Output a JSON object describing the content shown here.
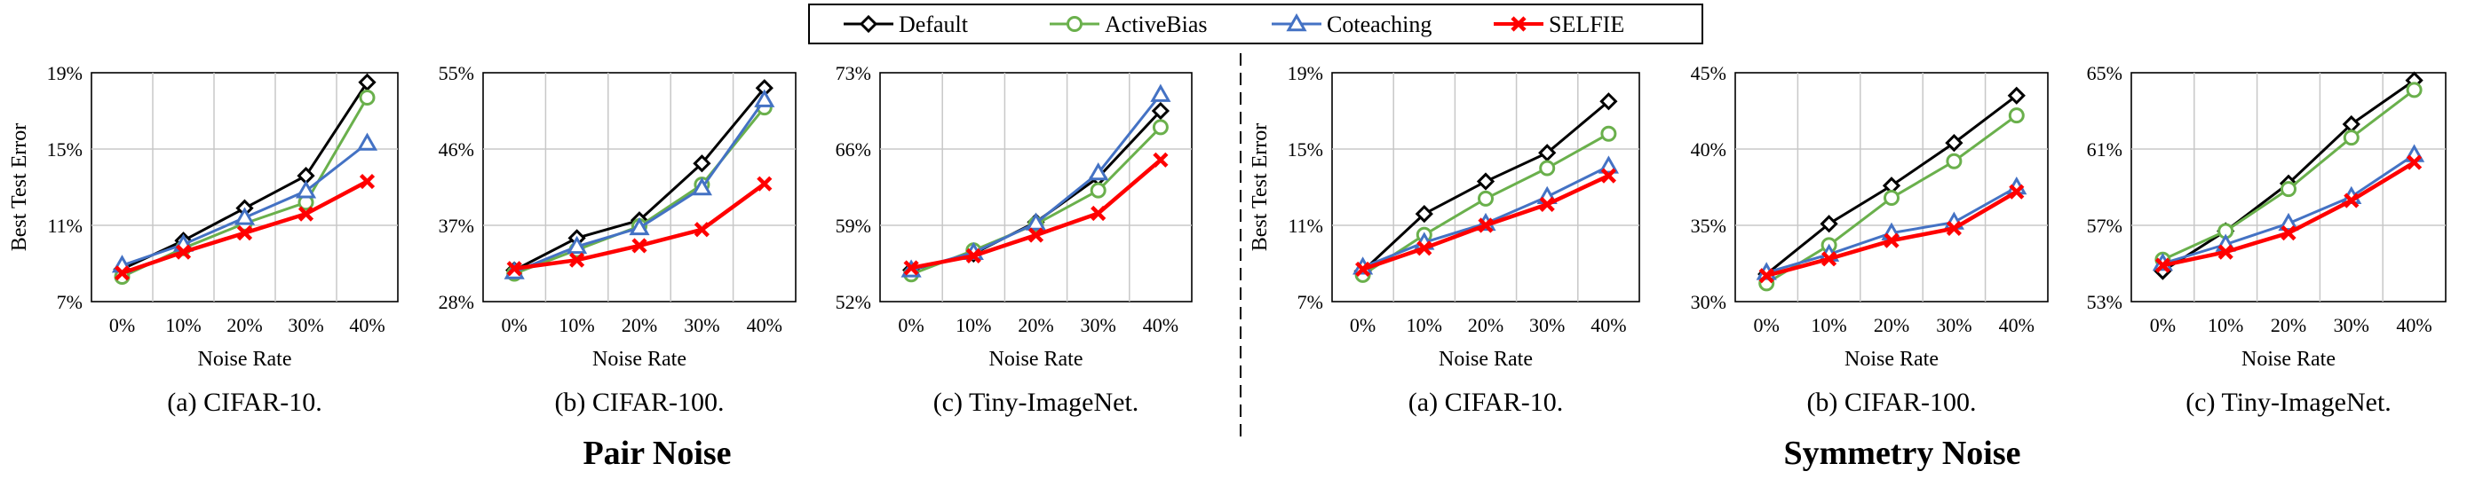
{
  "legend": {
    "entries": [
      {
        "name": "Default",
        "color": "#000000",
        "marker": "diamond"
      },
      {
        "name": "ActiveBias",
        "color": "#6ab04c",
        "marker": "circle"
      },
      {
        "name": "Coteaching",
        "color": "#4472c4",
        "marker": "triangle"
      },
      {
        "name": "SELFIE",
        "color": "#ff0000",
        "marker": "cross"
      }
    ]
  },
  "groups": [
    {
      "title": "Pair Noise"
    },
    {
      "title": "Symmetry Noise"
    }
  ],
  "chart_data": [
    {
      "type": "line",
      "group": "Pair Noise",
      "caption": "(a) CIFAR-10.",
      "xlabel": "Noise Rate",
      "ylabel": "Best Test Error",
      "categories": [
        "0%",
        "10%",
        "20%",
        "30%",
        "40%"
      ],
      "ylim": [
        7,
        19
      ],
      "yticks": [
        "7%",
        "11%",
        "15%",
        "19%"
      ],
      "grid": true,
      "series": [
        {
          "name": "Default",
          "values": [
            8.7,
            10.2,
            11.9,
            13.6,
            18.5
          ]
        },
        {
          "name": "ActiveBias",
          "values": [
            8.3,
            9.8,
            11.1,
            12.2,
            17.7
          ]
        },
        {
          "name": "Coteaching",
          "values": [
            8.9,
            10.0,
            11.4,
            12.8,
            15.3
          ]
        },
        {
          "name": "SELFIE",
          "values": [
            8.5,
            9.6,
            10.6,
            11.6,
            13.3
          ]
        }
      ]
    },
    {
      "type": "line",
      "group": "Pair Noise",
      "caption": "(b) CIFAR-100.",
      "xlabel": "Noise Rate",
      "ylabel": "",
      "categories": [
        "0%",
        "10%",
        "20%",
        "30%",
        "40%"
      ],
      "ylim": [
        28,
        55
      ],
      "yticks": [
        "28%",
        "37%",
        "46%",
        "55%"
      ],
      "grid": true,
      "series": [
        {
          "name": "Default",
          "values": [
            31.7,
            35.5,
            37.6,
            44.3,
            53.2
          ]
        },
        {
          "name": "ActiveBias",
          "values": [
            31.3,
            34.1,
            36.9,
            41.8,
            50.9
          ]
        },
        {
          "name": "Coteaching",
          "values": [
            31.5,
            34.5,
            36.7,
            41.4,
            51.8
          ]
        },
        {
          "name": "SELFIE",
          "values": [
            31.9,
            32.9,
            34.6,
            36.5,
            41.9
          ]
        }
      ]
    },
    {
      "type": "line",
      "group": "Pair Noise",
      "caption": "(c) Tiny-ImageNet.",
      "xlabel": "Noise Rate",
      "ylabel": "",
      "categories": [
        "0%",
        "10%",
        "20%",
        "30%",
        "40%"
      ],
      "ylim": [
        52,
        73
      ],
      "yticks": [
        "52%",
        "59%",
        "66%",
        "73%"
      ],
      "grid": true,
      "series": [
        {
          "name": "Default",
          "values": [
            54.9,
            56.4,
            59.3,
            63.4,
            69.5
          ]
        },
        {
          "name": "ActiveBias",
          "values": [
            54.5,
            56.7,
            59.1,
            62.2,
            68.0
          ]
        },
        {
          "name": "Coteaching",
          "values": [
            54.9,
            56.5,
            59.2,
            63.8,
            71.0
          ]
        },
        {
          "name": "SELFIE",
          "values": [
            55.1,
            56.2,
            58.1,
            60.1,
            65.0
          ]
        }
      ]
    },
    {
      "type": "line",
      "group": "Symmetry Noise",
      "caption": "(a) CIFAR-10.",
      "xlabel": "Noise Rate",
      "ylabel": "Best Test Error",
      "categories": [
        "0%",
        "10%",
        "20%",
        "30%",
        "40%"
      ],
      "ylim": [
        7,
        19
      ],
      "yticks": [
        "7%",
        "11%",
        "15%",
        "19%"
      ],
      "grid": true,
      "series": [
        {
          "name": "Default",
          "values": [
            8.6,
            11.6,
            13.3,
            14.8,
            17.5
          ]
        },
        {
          "name": "ActiveBias",
          "values": [
            8.4,
            10.5,
            12.4,
            14.0,
            15.8
          ]
        },
        {
          "name": "Coteaching",
          "values": [
            8.8,
            10.1,
            11.1,
            12.5,
            14.1
          ]
        },
        {
          "name": "SELFIE",
          "values": [
            8.7,
            9.8,
            11.0,
            12.1,
            13.6
          ]
        }
      ]
    },
    {
      "type": "line",
      "group": "Symmetry Noise",
      "caption": "(b) CIFAR-100.",
      "xlabel": "Noise Rate",
      "ylabel": "",
      "categories": [
        "0%",
        "10%",
        "20%",
        "30%",
        "40%"
      ],
      "ylim": [
        30,
        45
      ],
      "yticks": [
        "30%",
        "35%",
        "40%",
        "45%"
      ],
      "grid": true,
      "series": [
        {
          "name": "Default",
          "values": [
            31.8,
            35.1,
            37.6,
            40.4,
            43.5
          ]
        },
        {
          "name": "ActiveBias",
          "values": [
            31.2,
            33.7,
            36.8,
            39.2,
            42.2
          ]
        },
        {
          "name": "Coteaching",
          "values": [
            31.9,
            33.1,
            34.5,
            35.2,
            37.5
          ]
        },
        {
          "name": "SELFIE",
          "values": [
            31.7,
            32.8,
            34.0,
            34.8,
            37.2
          ]
        }
      ]
    },
    {
      "type": "line",
      "group": "Symmetry Noise",
      "caption": "(c) Tiny-ImageNet.",
      "xlabel": "Noise Rate",
      "ylabel": "",
      "categories": [
        "0%",
        "10%",
        "20%",
        "30%",
        "40%"
      ],
      "ylim": [
        53,
        65
      ],
      "yticks": [
        "53%",
        "57%",
        "61%",
        "65%"
      ],
      "grid": true,
      "series": [
        {
          "name": "Default",
          "values": [
            54.6,
            56.7,
            59.2,
            62.3,
            64.6
          ]
        },
        {
          "name": "ActiveBias",
          "values": [
            55.2,
            56.7,
            58.9,
            61.6,
            64.1
          ]
        },
        {
          "name": "Coteaching",
          "values": [
            55.0,
            56.0,
            57.1,
            58.5,
            60.7
          ]
        },
        {
          "name": "SELFIE",
          "values": [
            54.9,
            55.6,
            56.6,
            58.3,
            60.3
          ]
        }
      ]
    }
  ]
}
